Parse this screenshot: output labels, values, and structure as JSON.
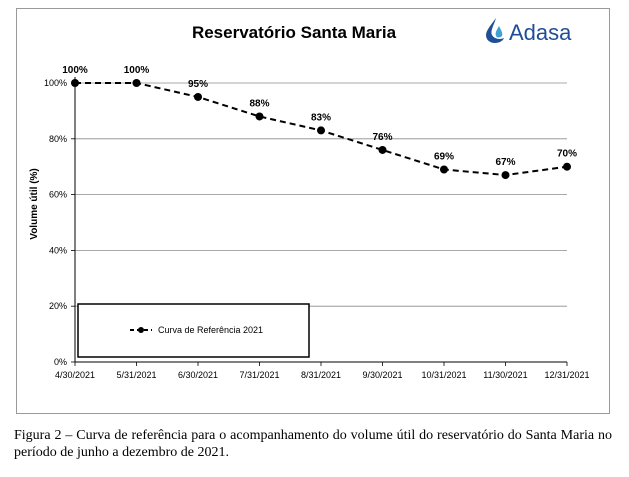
{
  "chart_data": {
    "type": "line",
    "title": "Reservatório Santa Maria",
    "ylabel": "Volume útil (%)",
    "xlabel": "",
    "categories": [
      "4/30/2021",
      "5/31/2021",
      "6/30/2021",
      "7/31/2021",
      "8/31/2021",
      "9/30/2021",
      "10/31/2021",
      "11/30/2021",
      "12/31/2021"
    ],
    "series": [
      {
        "name": "Curva de Referência 2021",
        "values": [
          100,
          100,
          95,
          88,
          83,
          76,
          69,
          67,
          70
        ],
        "labels": [
          "100%",
          "100%",
          "95%",
          "88%",
          "83%",
          "76%",
          "69%",
          "67%",
          "70%"
        ],
        "color": "#000000",
        "line_style": "dashed"
      }
    ],
    "ylim": [
      0,
      100
    ],
    "yticks": [
      0,
      20,
      40,
      60,
      80,
      100
    ],
    "ytick_labels": [
      "0%",
      "20%",
      "40%",
      "60%",
      "80%",
      "100%"
    ],
    "grid": true,
    "legend_position": "bottom-left"
  },
  "logo": {
    "text": "Adasa",
    "icon": "water-drop-icon",
    "color": "#1f4e96"
  },
  "caption": "Figura 2 – Curva de referência para o acompanhamento do volume útil do reservatório do Santa Maria no período de junho a dezembro de 2021."
}
